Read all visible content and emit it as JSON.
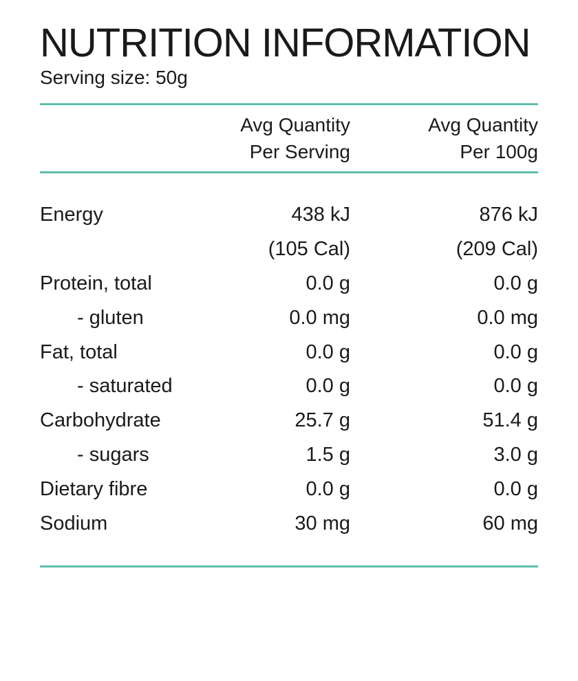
{
  "title": "NUTRITION INFORMATION",
  "serving_size": "Serving size: 50g",
  "columns": {
    "per_serving": [
      "Avg Quantity",
      "Per Serving"
    ],
    "per_100g": [
      "Avg Quantity",
      "Per 100g"
    ]
  },
  "rows": [
    {
      "label": "Energy",
      "per_serving": "438 kJ",
      "per_100g": "876 kJ",
      "sub": false
    },
    {
      "label": "",
      "per_serving": "(105 Cal)",
      "per_100g": "(209 Cal)",
      "sub": false
    },
    {
      "label": "Protein, total",
      "per_serving": "0.0 g",
      "per_100g": "0.0 g",
      "sub": false
    },
    {
      "label": "- gluten",
      "per_serving": "0.0 mg",
      "per_100g": "0.0 mg",
      "sub": true
    },
    {
      "label": "Fat, total",
      "per_serving": "0.0 g",
      "per_100g": "0.0 g",
      "sub": false
    },
    {
      "label": "- saturated",
      "per_serving": "0.0 g",
      "per_100g": "0.0 g",
      "sub": true
    },
    {
      "label": "Carbohydrate",
      "per_serving": "25.7 g",
      "per_100g": "51.4 g",
      "sub": false
    },
    {
      "label": "- sugars",
      "per_serving": "1.5 g",
      "per_100g": "3.0 g",
      "sub": true
    },
    {
      "label": "Dietary fibre",
      "per_serving": "0.0 g",
      "per_100g": "0.0 g",
      "sub": false
    },
    {
      "label": "Sodium",
      "per_serving": "30 mg",
      "per_100g": "60 mg",
      "sub": false
    }
  ],
  "colors": {
    "rule": "#5fbfae",
    "text": "#1a1a1a"
  }
}
